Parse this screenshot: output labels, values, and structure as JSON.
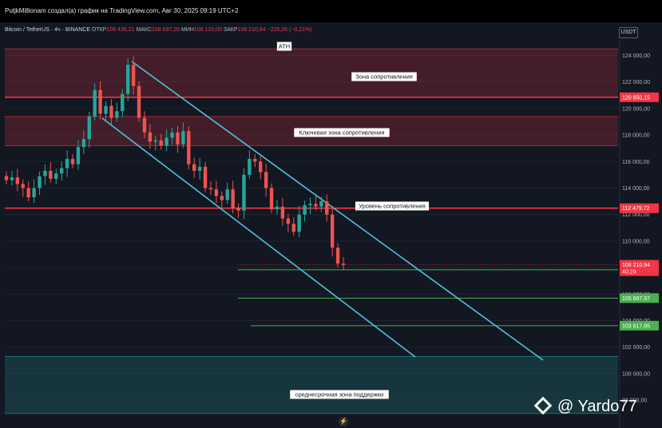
{
  "header": {
    "publisher_line": "PutjkMillionam создал(а) график на TradingView.com, Авг 30, 2025 09:19 UTC+2"
  },
  "symbol_bar": {
    "symbol": "Bitcoin / TetherUS · 4ч · BINANCE",
    "open_label": "ОТКР",
    "open_value": "108 436,21",
    "high_label": "МАКС",
    "high_value": "108 697,28",
    "low_label": "МИН",
    "low_value": "108 120,00",
    "close_label": "ЗАКР",
    "close_value": "108 210,94",
    "change": "−225,26 (−0,21%)",
    "currency_button": "USDT"
  },
  "chart_data": {
    "type": "candlestick",
    "y_axis_range": [
      98000,
      125000
    ],
    "y_ticks": [
      "124 000,00",
      "122 000,00",
      "120 000,00",
      "118 000,00",
      "116 000,00",
      "114 000,00",
      "112 000,00",
      "110 000,00",
      "108 000,00",
      "106 000,00",
      "104 000,00",
      "102 000,00",
      "100 000,00",
      "98 000,00"
    ],
    "candles_approx_close": [
      114600,
      114800,
      114300,
      114000,
      113300,
      114000,
      114900,
      115300,
      114700,
      115100,
      115500,
      116200,
      115800,
      117100,
      117700,
      119400,
      121400,
      119600,
      120200,
      119300,
      119800,
      121100,
      123300,
      121700,
      119300,
      118200,
      117500,
      117600,
      117200,
      117800,
      118200,
      117300,
      118300,
      115800,
      115300,
      115600,
      114000,
      113900,
      113400,
      113100,
      113900,
      112500,
      112300,
      115000,
      116200,
      116000,
      115200,
      114000,
      112400,
      112600,
      111700,
      111300,
      110700,
      112000,
      112700,
      112800,
      112600,
      113000,
      112000,
      109500,
      108300,
      108200
    ],
    "horizontal_levels": [
      {
        "label": "120 850,15",
        "value": 120850.15,
        "color": "#f23645"
      },
      {
        "label": "112 479,72",
        "value": 112479.72,
        "color": "#f23645"
      },
      {
        "label": "107 834,52",
        "value": 107834.52,
        "color": "#4caf50"
      },
      {
        "label": "105 697,97",
        "value": 105697.97,
        "color": "#4caf50"
      },
      {
        "label": "103 617,65",
        "value": 103617.65,
        "color": "#4caf50"
      }
    ],
    "current_price": {
      "label": "108 210,94",
      "countdown": "40:29",
      "color": "#f23645"
    },
    "zones": [
      {
        "label": "Зона сопротивления",
        "from": 120850,
        "to": 124500,
        "color": "#f23645"
      },
      {
        "label": "Ключевая зона сопротивления",
        "from": 117200,
        "to": 119400,
        "color": "#f23645"
      },
      {
        "label": "среднесрочная зона поддержки",
        "from": 97000,
        "to": 101300,
        "color": "#26a69a"
      }
    ],
    "annotations": [
      {
        "label": "ATH",
        "value": 124500
      },
      {
        "label": "Уровень сопротивления",
        "value": 112479.72
      }
    ],
    "channel": {
      "color": "#4fc3dc"
    }
  },
  "watermark": {
    "text": "@ Yardo77"
  }
}
